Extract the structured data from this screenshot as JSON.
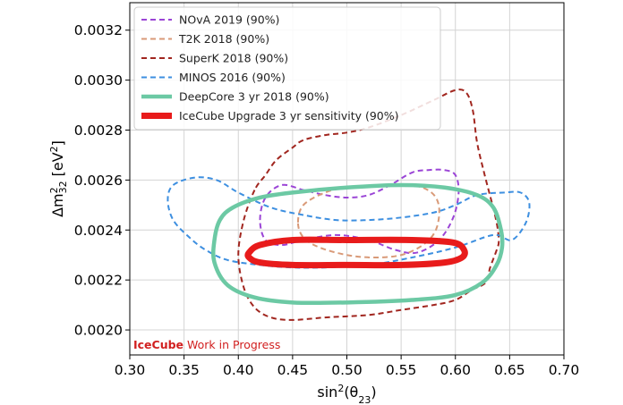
{
  "chart_data": {
    "type": "line",
    "xlabel_base": "sin",
    "xlabel_sup": "2",
    "xlabel_arg": "(θ",
    "xlabel_sub": "23",
    "xlabel_close": ")",
    "ylabel_delta": "Δm",
    "ylabel_sup": "2",
    "ylabel_sub": "32",
    "ylabel_unit": "[eV",
    "ylabel_unit_sup": "2",
    "ylabel_unit_close": "]",
    "xlim": [
      0.3,
      0.7
    ],
    "ylim": [
      0.0019,
      0.00331
    ],
    "x_ticks": [
      0.3,
      0.35,
      0.4,
      0.45,
      0.5,
      0.55,
      0.6,
      0.65,
      0.7
    ],
    "x_tick_labels": [
      "0.30",
      "0.35",
      "0.40",
      "0.45",
      "0.50",
      "0.55",
      "0.60",
      "0.65",
      "0.70"
    ],
    "y_ticks": [
      0.002,
      0.0022,
      0.0024,
      0.0026,
      0.0028,
      0.003,
      0.0032
    ],
    "y_tick_labels": [
      "0.0020",
      "0.0022",
      "0.0024",
      "0.0026",
      "0.0028",
      "0.0030",
      "0.0032"
    ],
    "grid": true,
    "legend_position": "top-center",
    "series": [
      {
        "name": "NOvA 2019 (90%)",
        "color": "#9b45d6",
        "style": "dashed",
        "width": 2,
        "points": [
          [
            0.42,
            0.00244
          ],
          [
            0.425,
            0.00253
          ],
          [
            0.44,
            0.00258
          ],
          [
            0.46,
            0.00256
          ],
          [
            0.48,
            0.00254
          ],
          [
            0.5,
            0.00253
          ],
          [
            0.52,
            0.00254
          ],
          [
            0.54,
            0.00258
          ],
          [
            0.56,
            0.00263
          ],
          [
            0.575,
            0.00264
          ],
          [
            0.59,
            0.00264
          ],
          [
            0.6,
            0.00262
          ],
          [
            0.603,
            0.00255
          ],
          [
            0.598,
            0.00245
          ],
          [
            0.585,
            0.00236
          ],
          [
            0.565,
            0.00231
          ],
          [
            0.545,
            0.00232
          ],
          [
            0.52,
            0.00236
          ],
          [
            0.49,
            0.00238
          ],
          [
            0.46,
            0.00236
          ],
          [
            0.44,
            0.00234
          ],
          [
            0.425,
            0.00236
          ],
          [
            0.42,
            0.00244
          ]
        ]
      },
      {
        "name": "T2K 2018 (90%)",
        "color": "#d99a78",
        "style": "dashed",
        "width": 2,
        "points": [
          [
            0.455,
            0.00243
          ],
          [
            0.46,
            0.0025
          ],
          [
            0.48,
            0.00255
          ],
          [
            0.5,
            0.00257
          ],
          [
            0.53,
            0.00258
          ],
          [
            0.56,
            0.00258
          ],
          [
            0.578,
            0.00255
          ],
          [
            0.585,
            0.00249
          ],
          [
            0.582,
            0.0024
          ],
          [
            0.57,
            0.00234
          ],
          [
            0.55,
            0.0023
          ],
          [
            0.525,
            0.00229
          ],
          [
            0.5,
            0.0023
          ],
          [
            0.475,
            0.00233
          ],
          [
            0.46,
            0.00237
          ],
          [
            0.455,
            0.00243
          ]
        ]
      },
      {
        "name": "SuperK 2018 (90%)",
        "color": "#a1261f",
        "style": "dashed",
        "width": 2,
        "points": [
          [
            0.415,
            0.00256
          ],
          [
            0.405,
            0.00244
          ],
          [
            0.4,
            0.0023
          ],
          [
            0.405,
            0.00217
          ],
          [
            0.415,
            0.00209
          ],
          [
            0.43,
            0.00205
          ],
          [
            0.45,
            0.00204
          ],
          [
            0.48,
            0.00205
          ],
          [
            0.52,
            0.00206
          ],
          [
            0.55,
            0.00208
          ],
          [
            0.58,
            0.0021
          ],
          [
            0.6,
            0.00212
          ],
          [
            0.615,
            0.00216
          ],
          [
            0.628,
            0.00219
          ],
          [
            0.632,
            0.00225
          ],
          [
            0.638,
            0.00232
          ],
          [
            0.64,
            0.00236
          ],
          [
            0.637,
            0.00245
          ],
          [
            0.627,
            0.00262
          ],
          [
            0.62,
            0.00275
          ],
          [
            0.616,
            0.00288
          ],
          [
            0.61,
            0.00295
          ],
          [
            0.6,
            0.00296
          ],
          [
            0.58,
            0.00292
          ],
          [
            0.55,
            0.00286
          ],
          [
            0.52,
            0.00281
          ],
          [
            0.5,
            0.00279
          ],
          [
            0.48,
            0.00278
          ],
          [
            0.46,
            0.00276
          ],
          [
            0.45,
            0.00273
          ],
          [
            0.435,
            0.00268
          ],
          [
            0.425,
            0.00262
          ],
          [
            0.415,
            0.00256
          ]
        ]
      },
      {
        "name": "MINOS 2016 (90%)",
        "color": "#3d8fe0",
        "style": "dashed",
        "width": 2,
        "points": [
          [
            0.36,
            0.00261
          ],
          [
            0.34,
            0.00258
          ],
          [
            0.335,
            0.00252
          ],
          [
            0.34,
            0.00244
          ],
          [
            0.355,
            0.00237
          ],
          [
            0.37,
            0.00232
          ],
          [
            0.39,
            0.00228
          ],
          [
            0.42,
            0.00226
          ],
          [
            0.45,
            0.00225
          ],
          [
            0.48,
            0.00225
          ],
          [
            0.52,
            0.00226
          ],
          [
            0.56,
            0.00229
          ],
          [
            0.6,
            0.00233
          ],
          [
            0.635,
            0.00238
          ],
          [
            0.652,
            0.00236
          ],
          [
            0.665,
            0.00243
          ],
          [
            0.668,
            0.00251
          ],
          [
            0.66,
            0.00255
          ],
          [
            0.645,
            0.00255
          ],
          [
            0.62,
            0.00254
          ],
          [
            0.6,
            0.0025
          ],
          [
            0.58,
            0.00247
          ],
          [
            0.55,
            0.00245
          ],
          [
            0.52,
            0.00244
          ],
          [
            0.49,
            0.00244
          ],
          [
            0.46,
            0.00246
          ],
          [
            0.43,
            0.00249
          ],
          [
            0.4,
            0.00255
          ],
          [
            0.38,
            0.0026
          ],
          [
            0.36,
            0.00261
          ]
        ]
      },
      {
        "name": "DeepCore 3 yr 2018 (90%)",
        "color": "#6cc9a4",
        "style": "solid",
        "width": 4.5,
        "points": [
          [
            0.383,
            0.00244
          ],
          [
            0.395,
            0.00249
          ],
          [
            0.42,
            0.00253
          ],
          [
            0.45,
            0.00255
          ],
          [
            0.5,
            0.00257
          ],
          [
            0.55,
            0.00258
          ],
          [
            0.59,
            0.00257
          ],
          [
            0.62,
            0.00254
          ],
          [
            0.635,
            0.00249
          ],
          [
            0.642,
            0.0024
          ],
          [
            0.643,
            0.00233
          ],
          [
            0.638,
            0.00226
          ],
          [
            0.625,
            0.00219
          ],
          [
            0.6,
            0.00214
          ],
          [
            0.56,
            0.00212
          ],
          [
            0.5,
            0.00211
          ],
          [
            0.45,
            0.00211
          ],
          [
            0.415,
            0.00213
          ],
          [
            0.39,
            0.00218
          ],
          [
            0.378,
            0.00227
          ],
          [
            0.378,
            0.00236
          ],
          [
            0.383,
            0.00244
          ]
        ]
      },
      {
        "name": "IceCube Upgrade 3 yr sensitivity (90%)",
        "color": "#e81b1b",
        "style": "solid",
        "width": 7,
        "points": [
          [
            0.41,
            0.00231
          ],
          [
            0.42,
            0.00234
          ],
          [
            0.45,
            0.00236
          ],
          [
            0.5,
            0.00236
          ],
          [
            0.56,
            0.00236
          ],
          [
            0.598,
            0.00235
          ],
          [
            0.608,
            0.00232
          ],
          [
            0.606,
            0.00229
          ],
          [
            0.59,
            0.00227
          ],
          [
            0.55,
            0.00226
          ],
          [
            0.5,
            0.00226
          ],
          [
            0.45,
            0.00226
          ],
          [
            0.42,
            0.00227
          ],
          [
            0.41,
            0.00229
          ],
          [
            0.41,
            0.00231
          ]
        ]
      }
    ],
    "annotation_brand": "IceCube",
    "annotation_text": " Work in Progress",
    "annotation_color": "#d11f1f"
  }
}
